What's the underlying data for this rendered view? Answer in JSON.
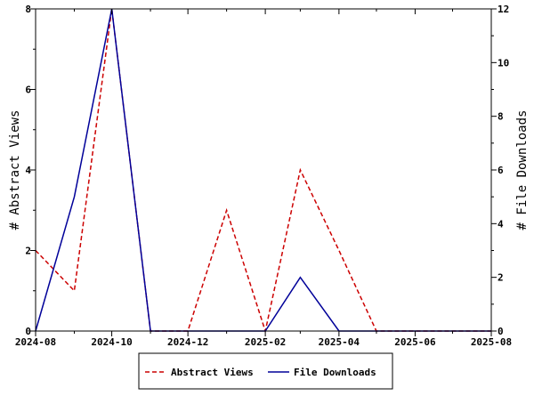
{
  "chart_data": {
    "type": "line",
    "title": "",
    "x_axis": {
      "label": "",
      "start": "2024-08",
      "end": "2025-08",
      "tick_labels": [
        "2024-08",
        "2024-10",
        "2024-12",
        "2025-02",
        "2025-04",
        "2025-06",
        "2025-08"
      ],
      "tick_dates": [
        "2024-08-01",
        "2024-10-01",
        "2024-12-01",
        "2025-02-01",
        "2025-04-01",
        "2025-06-01",
        "2025-08-01"
      ]
    },
    "y_left": {
      "label": "# Abstract Views",
      "range": [
        0,
        8
      ],
      "ticks": [
        "0",
        "2",
        "4",
        "6",
        "8"
      ]
    },
    "y_right": {
      "label": "# File Downloads",
      "range": [
        0,
        12
      ],
      "ticks": [
        "0",
        "2",
        "4",
        "6",
        "8",
        "10",
        "12"
      ]
    },
    "series": [
      {
        "name": "Abstract Views",
        "axis": "left",
        "color": "#cc0000",
        "dash": "dashed",
        "points": [
          [
            "2024-08-01",
            2
          ],
          [
            "2024-09-01",
            1
          ],
          [
            "2024-10-01",
            8
          ],
          [
            "2024-11-01",
            0
          ],
          [
            "2024-12-01",
            0
          ],
          [
            "2025-01-01",
            3
          ],
          [
            "2025-02-01",
            0
          ],
          [
            "2025-03-01",
            4
          ],
          [
            "2025-04-01",
            2
          ],
          [
            "2025-05-01",
            0
          ],
          [
            "2025-06-01",
            0
          ],
          [
            "2025-07-01",
            0
          ],
          [
            "2025-08-01",
            0
          ]
        ]
      },
      {
        "name": "File Downloads",
        "axis": "right",
        "color": "#000099",
        "dash": "solid",
        "points": [
          [
            "2024-08-01",
            0
          ],
          [
            "2024-09-01",
            5
          ],
          [
            "2024-10-01",
            12
          ],
          [
            "2024-11-01",
            0
          ],
          [
            "2024-12-01",
            0
          ],
          [
            "2025-01-01",
            0
          ],
          [
            "2025-02-01",
            0
          ],
          [
            "2025-03-01",
            2
          ],
          [
            "2025-04-01",
            0
          ],
          [
            "2025-05-01",
            0
          ],
          [
            "2025-06-01",
            0
          ],
          [
            "2025-07-01",
            0
          ],
          [
            "2025-08-01",
            0
          ]
        ]
      }
    ],
    "legend": {
      "placement": "bottom-center"
    },
    "grid": false
  }
}
